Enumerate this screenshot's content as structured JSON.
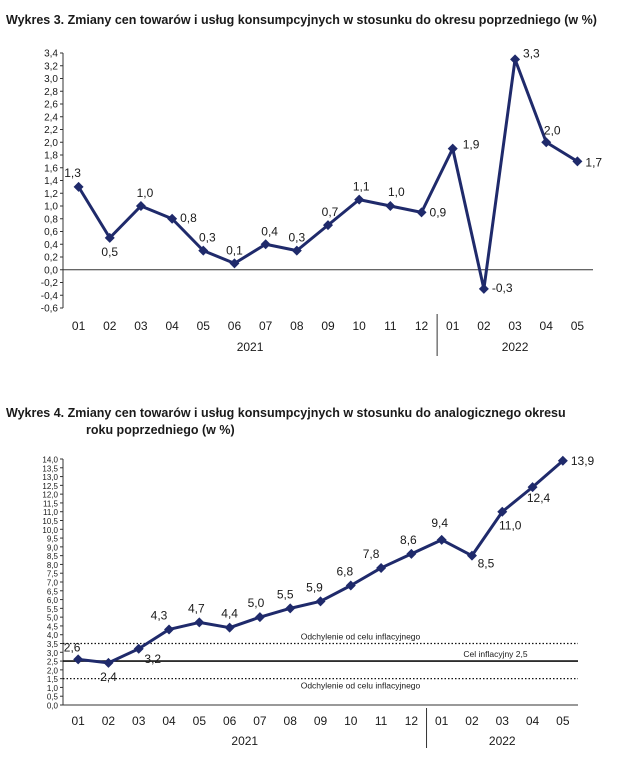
{
  "chart_data": [
    {
      "type": "line",
      "title": "Wykres 3. Zmiany cen towarów i usług konsumpcyjnych w stosunku do okresu poprzedniego (w %)",
      "categories": [
        "01",
        "02",
        "03",
        "04",
        "05",
        "06",
        "07",
        "08",
        "09",
        "10",
        "11",
        "12",
        "01",
        "02",
        "03",
        "04",
        "05"
      ],
      "years": [
        {
          "label": "2021",
          "from": 0,
          "to": 11
        },
        {
          "label": "2022",
          "from": 12,
          "to": 16
        }
      ],
      "values": [
        1.3,
        0.5,
        1.0,
        0.8,
        0.3,
        0.1,
        0.4,
        0.3,
        0.7,
        1.1,
        1.0,
        0.9,
        1.9,
        -0.3,
        3.3,
        2.0,
        1.7
      ],
      "labels": [
        "1,3",
        "0,5",
        "1,0",
        "0,8",
        "0,3",
        "0,1",
        "0,4",
        "0,3",
        "0,7",
        "1,1",
        "1,0",
        "0,9",
        "1,9",
        "-0,3",
        "3,3",
        "2,0",
        "1,7"
      ],
      "ylim": [
        -0.6,
        3.4
      ],
      "yticks": [
        "3,4",
        "3,2",
        "3,0",
        "2,8",
        "2,6",
        "2,4",
        "2,2",
        "2,0",
        "1,8",
        "1,6",
        "1,4",
        "1,2",
        "1,0",
        "0,8",
        "0,6",
        "0,4",
        "0,2",
        "0,0",
        "-0,2",
        "-0,4",
        "-0,6"
      ],
      "line_color": "#1f2a6b",
      "grid": false
    },
    {
      "type": "line",
      "title_line1": "Wykres 4. Zmiany cen towarów i usług konsumpcyjnych w stosunku do analogicznego okresu",
      "title_line2": "roku poprzedniego (w %)",
      "categories": [
        "01",
        "02",
        "03",
        "04",
        "05",
        "06",
        "07",
        "08",
        "09",
        "10",
        "11",
        "12",
        "01",
        "02",
        "03",
        "04",
        "05"
      ],
      "years": [
        {
          "label": "2021",
          "from": 0,
          "to": 11
        },
        {
          "label": "2022",
          "from": 12,
          "to": 16
        }
      ],
      "values": [
        2.6,
        2.4,
        3.2,
        4.3,
        4.7,
        4.4,
        5.0,
        5.5,
        5.9,
        6.8,
        7.8,
        8.6,
        9.4,
        8.5,
        11.0,
        12.4,
        13.9
      ],
      "labels": [
        "2,6",
        "2,4",
        "3,2",
        "4,3",
        "4,7",
        "4,4",
        "5,0",
        "5,5",
        "5,9",
        "6,8",
        "7,8",
        "8,6",
        "9,4",
        "8,5",
        "11,0",
        "12,4",
        "13,9"
      ],
      "ylim": [
        0,
        14
      ],
      "yticks": [
        "14,0",
        "13,5",
        "13,0",
        "12,5",
        "12,0",
        "11,5",
        "11,0",
        "10,5",
        "10,0",
        "9,5",
        "9,0",
        "8,5",
        "8,0",
        "7,5",
        "7,0",
        "6,5",
        "6,0",
        "5,5",
        "5,0",
        "4,5",
        "4,0",
        "3,5",
        "3,0",
        "2,5",
        "2,0",
        "1,5",
        "1,0",
        "0,5",
        "0,0"
      ],
      "reference_lines": [
        {
          "value": 3.5,
          "label": "Odchylenie od celu inflacyjnego",
          "style": "dotted"
        },
        {
          "value": 2.5,
          "label": "Cel inflacyjny 2,5",
          "style": "solid"
        },
        {
          "value": 1.5,
          "label": "Odchylenie od celu inflacyjnego",
          "style": "dotted"
        }
      ],
      "line_color": "#1f2a6b",
      "grid": false
    }
  ]
}
